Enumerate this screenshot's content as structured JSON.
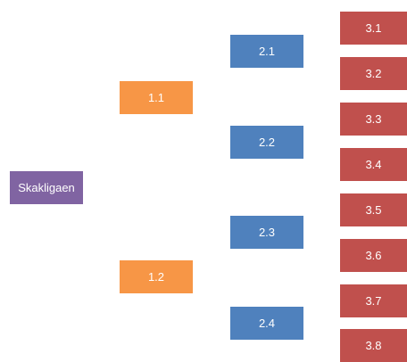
{
  "colors": {
    "root": "#8064a2",
    "level1": "#f79646",
    "level2": "#4f81bd",
    "level3": "#c0504d"
  },
  "root": {
    "label": "Skakligaen"
  },
  "level1": [
    {
      "label": "1.1"
    },
    {
      "label": "1.2"
    }
  ],
  "level2": [
    {
      "label": "2.1"
    },
    {
      "label": "2.2"
    },
    {
      "label": "2.3"
    },
    {
      "label": "2.4"
    }
  ],
  "level3": [
    {
      "label": "3.1"
    },
    {
      "label": "3.2"
    },
    {
      "label": "3.3"
    },
    {
      "label": "3.4"
    },
    {
      "label": "3.5"
    },
    {
      "label": "3.6"
    },
    {
      "label": "3.7"
    },
    {
      "label": "3.8"
    }
  ]
}
